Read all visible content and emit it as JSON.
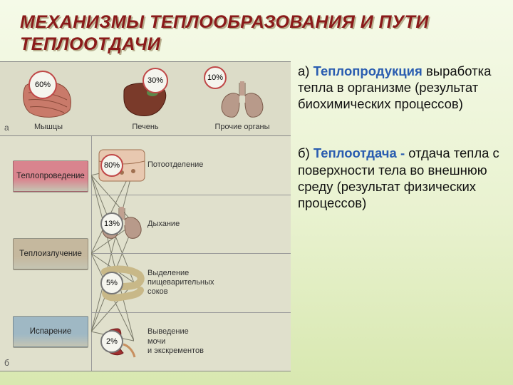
{
  "title_text": "МЕХАНИЗМЫ ТЕПЛООБРАЗОВАНИЯ И ПУТИ ТЕПЛООТДАЧИ",
  "title_color": "#8a1a1a",
  "title_shadow": "#b8b090",
  "panel_a": {
    "label": "а",
    "items": [
      {
        "name": "Мышцы",
        "percent": "60%",
        "badge_color": "#c04848",
        "illus": "muscle"
      },
      {
        "name": "Печень",
        "percent": "30%",
        "badge_color": "#c04848",
        "illus": "liver"
      },
      {
        "name": "Прочие органы",
        "percent": "10%",
        "badge_color": "#c04848",
        "illus": "lungs"
      }
    ]
  },
  "panel_b": {
    "label": "б",
    "mechanisms": [
      {
        "name": "Теплопроведение",
        "color": "#d9848e"
      },
      {
        "name": "Теплоизлучение",
        "color": "#c5b89e"
      },
      {
        "name": "Испарение",
        "color": "#9fb8c4"
      }
    ],
    "routes": [
      {
        "name": "Потоотделение",
        "percent": "80%",
        "badge_color": "#c04848",
        "illus": "skin"
      },
      {
        "name": "Дыхание",
        "percent": "13%",
        "badge_color": "#777",
        "illus": "lungs"
      },
      {
        "name": "Выделение\nпищеварительных\nсоков",
        "percent": "5%",
        "badge_color": "#777",
        "illus": "intestine"
      },
      {
        "name": "Выведение\nмочи\nи экскрементов",
        "percent": "2%",
        "badge_color": "#777",
        "illus": "kidney"
      }
    ],
    "connections": [
      [
        0,
        0
      ],
      [
        0,
        1
      ],
      [
        0,
        2
      ],
      [
        0,
        3
      ],
      [
        1,
        0
      ],
      [
        1,
        1
      ],
      [
        1,
        2
      ],
      [
        1,
        3
      ],
      [
        2,
        0
      ],
      [
        2,
        1
      ],
      [
        2,
        2
      ],
      [
        2,
        3
      ]
    ]
  },
  "text_a": {
    "prefix": "а) ",
    "highlight": "Теплопродукция",
    "highlight_color": "#2a5db0",
    "rest": " выработка тепла в организме (результат биохимических процессов)"
  },
  "text_b": {
    "prefix": "б) ",
    "highlight": "Теплоотдача -",
    "highlight_color": "#2a5db0",
    "rest": " отдача тепла с поверхности тела во внешнюю среду (результат физических процессов)"
  },
  "style": {
    "diagram_bg_a": "#dcdcc8",
    "diagram_bg_b": "#e0e0cc",
    "line_color": "#7a7a6a"
  }
}
